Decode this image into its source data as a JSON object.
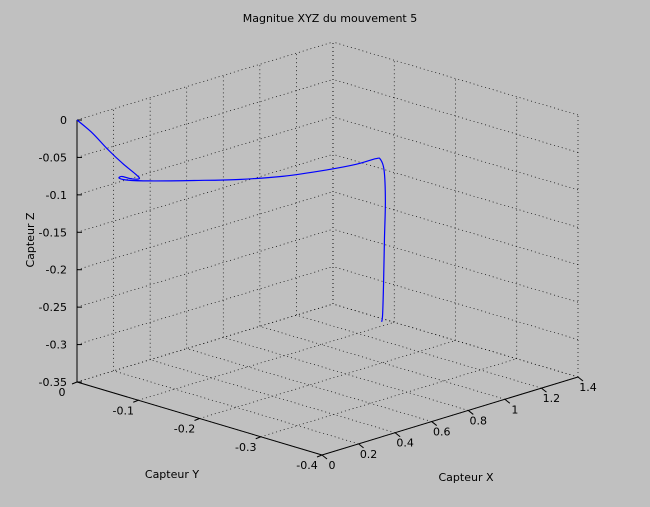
{
  "chart_data": {
    "type": "line3d",
    "title": "Magnitue XYZ du mouvement 5",
    "xlabel": "Capteur X",
    "ylabel": "Capteur Y",
    "zlabel": "Capteur Z",
    "xlim": [
      0,
      1.4
    ],
    "ylim": [
      -0.4,
      0
    ],
    "zlim": [
      -0.35,
      0
    ],
    "xticks": [
      0,
      0.2,
      0.4,
      0.6,
      0.8,
      1,
      1.2,
      1.4
    ],
    "yticks": [
      -0.4,
      -0.3,
      -0.2,
      -0.1,
      0
    ],
    "zticks": [
      -0.35,
      -0.3,
      -0.25,
      -0.2,
      -0.15,
      -0.1,
      -0.05,
      0
    ],
    "xtick_labels": [
      "0",
      "0.2",
      "0.4",
      "0.6",
      "0.8",
      "1",
      "1.2",
      "1.4"
    ],
    "ytick_labels": [
      "-0.4",
      "-0.3",
      "-0.2",
      "-0.1",
      "0"
    ],
    "ztick_labels": [
      "-0.35",
      "-0.3",
      "-0.25",
      "-0.2",
      "-0.15",
      "-0.1",
      "-0.05",
      "0"
    ],
    "grid": true,
    "series": [
      {
        "color": "#0000ff",
        "points": [
          [
            0.0,
            0.0,
            0.0
          ],
          [
            0.06,
            -0.007,
            -0.02
          ],
          [
            0.12,
            -0.015,
            -0.045
          ],
          [
            0.17,
            -0.024,
            -0.065
          ],
          [
            0.21,
            -0.033,
            -0.08
          ],
          [
            0.22,
            -0.036,
            -0.086
          ],
          [
            0.19,
            -0.031,
            -0.085
          ],
          [
            0.16,
            -0.026,
            -0.081
          ],
          [
            0.15,
            -0.024,
            -0.083
          ],
          [
            0.175,
            -0.03,
            -0.086
          ],
          [
            0.25,
            -0.045,
            -0.089
          ],
          [
            0.4,
            -0.072,
            -0.093
          ],
          [
            0.55,
            -0.1,
            -0.096
          ],
          [
            0.7,
            -0.128,
            -0.096
          ],
          [
            0.85,
            -0.155,
            -0.092
          ],
          [
            0.95,
            -0.172,
            -0.088
          ],
          [
            1.02,
            -0.183,
            -0.083
          ],
          [
            1.04,
            -0.185,
            -0.085
          ],
          [
            1.05,
            -0.188,
            -0.1
          ],
          [
            1.05,
            -0.19,
            -0.14
          ],
          [
            1.045,
            -0.19,
            -0.19
          ],
          [
            1.04,
            -0.19,
            -0.25
          ],
          [
            1.035,
            -0.19,
            -0.29
          ],
          [
            1.03,
            -0.19,
            -0.3
          ]
        ]
      }
    ]
  }
}
